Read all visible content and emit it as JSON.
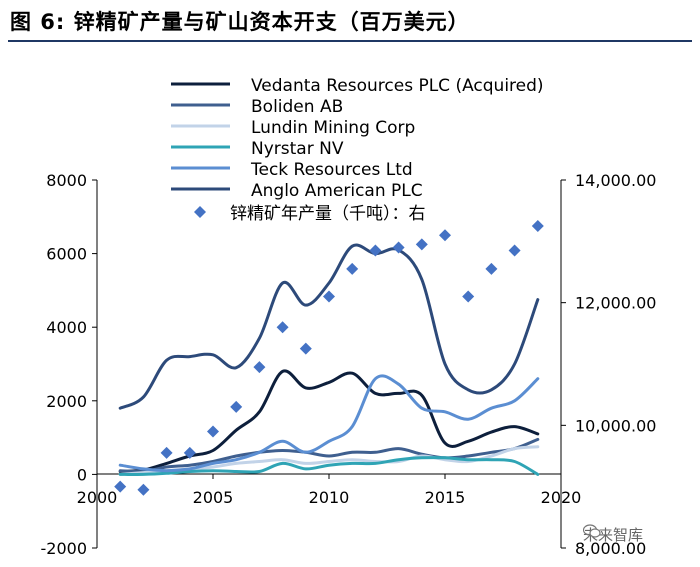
{
  "figure": {
    "title": "图 6:  锌精矿产量与矿山资本开支（百万美元）"
  },
  "watermark": {
    "text": "未来智库",
    "icon": "wechat-icon"
  },
  "chart_data": {
    "type": "line",
    "title": "锌精矿产量与矿山资本开支（百万美元）",
    "xlabel": "",
    "ylabel": "",
    "xlim": [
      2000,
      2020
    ],
    "ylim": [
      -2000,
      8000
    ],
    "y2lim": [
      8000,
      14000
    ],
    "x_ticks": [
      "2000",
      "2005",
      "2010",
      "2015",
      "2020"
    ],
    "y_ticks": [
      "-2000",
      "0",
      "2000",
      "4000",
      "6000",
      "8000"
    ],
    "y2_ticks": [
      "8,000.00",
      "10,000.00",
      "12,000.00",
      "14,000.00"
    ],
    "legend_position": "top-left",
    "x": [
      2001,
      2002,
      2003,
      2004,
      2005,
      2006,
      2007,
      2008,
      2009,
      2010,
      2011,
      2012,
      2013,
      2014,
      2015,
      2016,
      2017,
      2018,
      2019
    ],
    "series": [
      {
        "name": "Vedanta Resources PLC (Acquired)",
        "color": "#0d1f3c",
        "values": [
          80,
          120,
          300,
          500,
          650,
          1200,
          1700,
          2800,
          2350,
          2500,
          2750,
          2200,
          2200,
          2150,
          850,
          900,
          1150,
          1300,
          1100
        ]
      },
      {
        "name": "Boliden AB",
        "color": "#3f5f8f",
        "values": [
          100,
          80,
          200,
          250,
          350,
          500,
          600,
          650,
          600,
          500,
          600,
          600,
          700,
          550,
          450,
          500,
          600,
          700,
          950
        ]
      },
      {
        "name": "Lundin Mining Corp",
        "color": "#c2d3e8",
        "values": [
          0,
          50,
          100,
          150,
          200,
          300,
          350,
          400,
          300,
          350,
          400,
          350,
          350,
          500,
          400,
          350,
          500,
          700,
          750
        ]
      },
      {
        "name": "Nyrstar NV",
        "color": "#2fa4b5",
        "values": [
          0,
          0,
          30,
          80,
          100,
          80,
          80,
          300,
          150,
          250,
          300,
          300,
          400,
          450,
          450,
          400,
          400,
          350,
          0
        ]
      },
      {
        "name": "Teck Resources Ltd",
        "color": "#5b8ed2",
        "values": [
          250,
          150,
          100,
          150,
          300,
          400,
          600,
          900,
          600,
          900,
          1300,
          2600,
          2450,
          1800,
          1700,
          1500,
          1800,
          2000,
          2600
        ]
      },
      {
        "name": "Anglo American PLC",
        "color": "#2d4a7a",
        "values": [
          1800,
          2100,
          3100,
          3200,
          3250,
          2900,
          3700,
          5200,
          4600,
          5200,
          6200,
          6000,
          6100,
          5300,
          3000,
          2300,
          2300,
          3000,
          4750
        ]
      }
    ],
    "scatter": {
      "name": "锌精矿年产量（千吨）：右",
      "color": "#4472c4",
      "axis": "right",
      "x": [
        2001,
        2002,
        2003,
        2004,
        2005,
        2006,
        2007,
        2008,
        2009,
        2010,
        2011,
        2012,
        2013,
        2014,
        2015,
        2016,
        2017,
        2018,
        2019
      ],
      "values": [
        9000,
        8950,
        9550,
        9550,
        9900,
        10300,
        10950,
        11600,
        11250,
        12100,
        12550,
        12850,
        12900,
        12950,
        13100,
        12100,
        12550,
        12850,
        13250
      ]
    }
  }
}
